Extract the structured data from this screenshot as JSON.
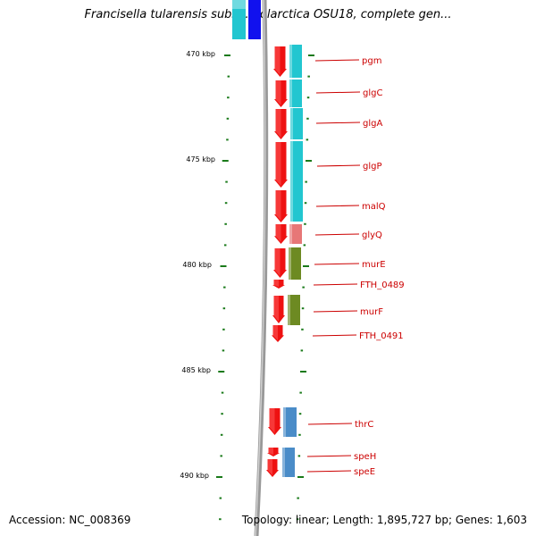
{
  "title": "Francisella tularensis subsp. holarctica OSU18, complete gen...",
  "footer": {
    "accession": "Accession: NC_008369",
    "topology": "Topology: linear; Length: 1,895,727 bp; Genes: 1,603"
  },
  "colors": {
    "gene_arrow": "#ee1111",
    "cog_cyan": "#22c6d0",
    "cog_salmon": "#e77777",
    "cog_olive": "#6d8a22",
    "cog_steel": "#4a8cc8",
    "cog_blue": "#1111ee",
    "label": "#cc0000",
    "backbone": "#999999",
    "tick": "#1a7a1a"
  },
  "kbp_labels": [
    "470 kbp",
    "475 kbp",
    "480 kbp",
    "485 kbp",
    "490 kbp"
  ],
  "genes": [
    {
      "name": "pgm",
      "cog": "cog_cyan"
    },
    {
      "name": "glgC",
      "cog": "cog_cyan"
    },
    {
      "name": "glgA",
      "cog": "cog_cyan"
    },
    {
      "name": "glgP",
      "cog": "cog_cyan"
    },
    {
      "name": "malQ",
      "cog": "cog_cyan"
    },
    {
      "name": "glyQ",
      "cog": "cog_salmon"
    },
    {
      "name": "murE",
      "cog": "cog_olive"
    },
    {
      "name": "FTH_0489",
      "cog": ""
    },
    {
      "name": "murF",
      "cog": "cog_olive"
    },
    {
      "name": "FTH_0491",
      "cog": ""
    },
    {
      "name": "thrC",
      "cog": "cog_steel"
    },
    {
      "name": "speH",
      "cog": "cog_steel"
    },
    {
      "name": "speE",
      "cog": "cog_steel"
    }
  ]
}
